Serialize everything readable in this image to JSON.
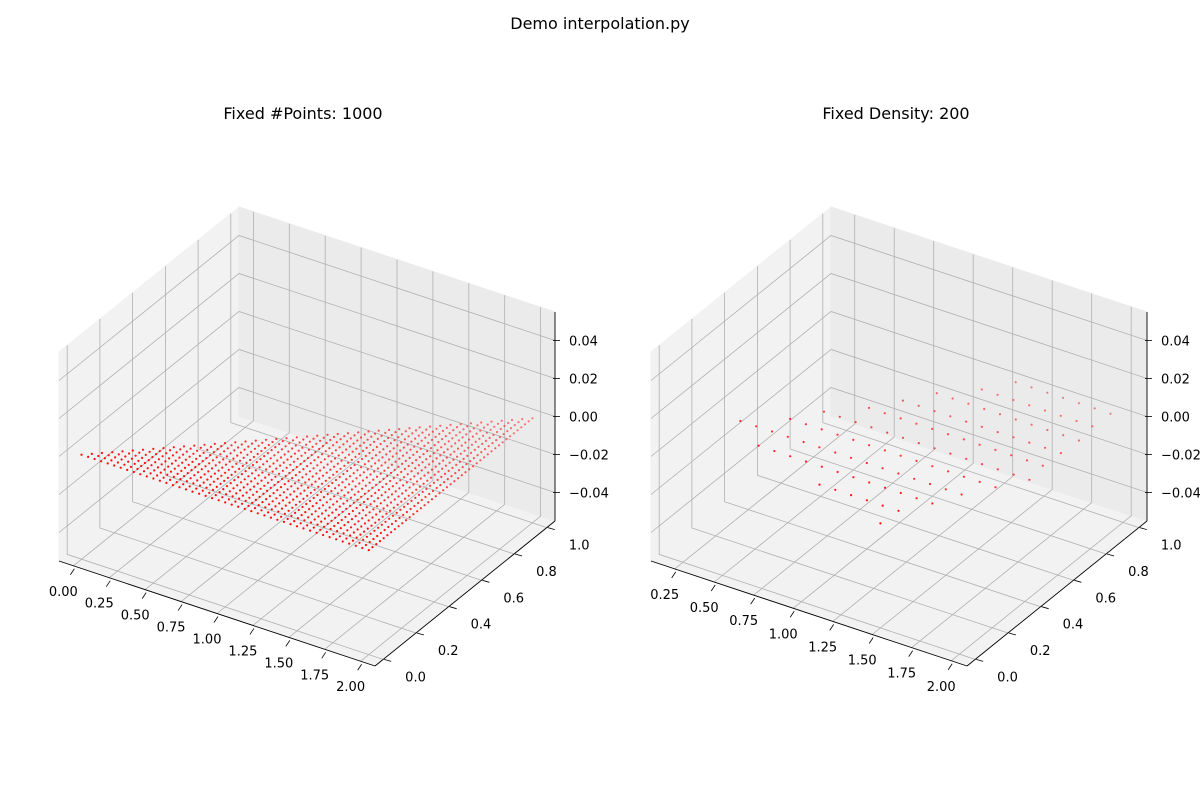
{
  "figure": {
    "suptitle": "Demo interpolation.py"
  },
  "chart_data": [
    {
      "type": "scatter",
      "projection": "3d",
      "title": "Fixed #Points: 1000",
      "xlabel": "",
      "ylabel": "",
      "zlabel": "",
      "xlim": [
        -0.1,
        2.1
      ],
      "ylim": [
        -0.05,
        1.05
      ],
      "zlim": [
        -0.055,
        0.055
      ],
      "xticks": [
        "0.00",
        "0.25",
        "0.50",
        "0.75",
        "1.00",
        "1.25",
        "1.50",
        "1.75",
        "2.00"
      ],
      "yticks": [
        "0.0",
        "0.2",
        "0.4",
        "0.6",
        "0.8",
        "1.0"
      ],
      "zticks": [
        "−0.04",
        "−0.02",
        "0.00",
        "0.02",
        "0.04"
      ],
      "grid": true,
      "marker_color": "#ff0000",
      "series": [
        {
          "type": "triangle-grid",
          "vertices": [
            [
              0,
              0,
              0
            ],
            [
              2,
              0,
              0
            ],
            [
              2,
              1,
              0
            ]
          ],
          "count": 1000
        }
      ]
    },
    {
      "type": "scatter",
      "projection": "3d",
      "title": "Fixed Density: 200",
      "xlabel": "",
      "ylabel": "",
      "zlabel": "",
      "xlim": [
        0.1,
        2.1
      ],
      "ylim": [
        -0.05,
        1.05
      ],
      "zlim": [
        -0.055,
        0.055
      ],
      "xticks": [
        "0.25",
        "0.50",
        "0.75",
        "1.00",
        "1.25",
        "1.50",
        "1.75",
        "2.00"
      ],
      "yticks": [
        "0.0",
        "0.2",
        "0.4",
        "0.6",
        "0.8",
        "1.0"
      ],
      "zticks": [
        "−0.04",
        "−0.02",
        "0.00",
        "0.02",
        "0.04"
      ],
      "grid": true,
      "marker_color": "#ff0000",
      "series": [
        {
          "type": "polygon-grid",
          "vertices": [
            [
              0.2,
              0.25,
              0
            ],
            [
              1.5,
              0,
              0
            ],
            [
              2,
              0.5,
              0
            ],
            [
              2,
              1,
              0
            ],
            [
              1.3,
              1,
              0
            ]
          ],
          "density": 200
        }
      ]
    }
  ]
}
